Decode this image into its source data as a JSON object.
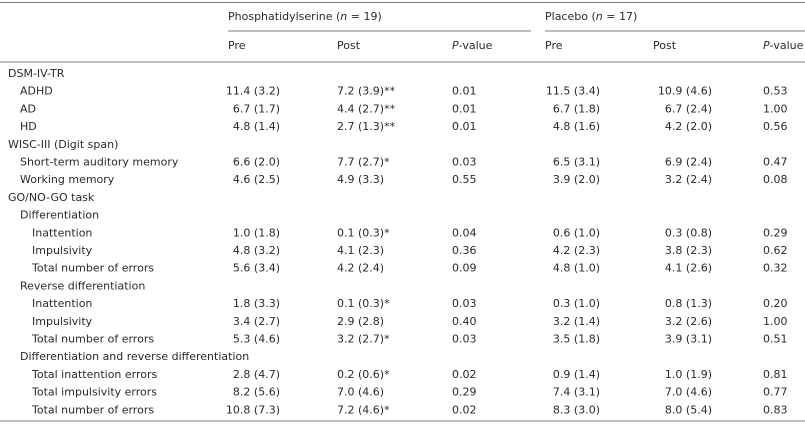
{
  "header": {
    "groups": [
      {
        "prefix": "Phosphatidylserine (",
        "italic": "n",
        "suffix": " = 19)"
      },
      {
        "prefix": "Placebo (",
        "italic": "n",
        "suffix": " = 17)"
      }
    ],
    "columns": [
      {
        "text": "Pre"
      },
      {
        "text": "Post"
      },
      {
        "italic": "P",
        "text": "-value"
      },
      {
        "text": "Pre"
      },
      {
        "text": "Post"
      },
      {
        "italic": "P",
        "text": "-value"
      }
    ]
  },
  "sections": [
    {
      "title": "DSM-IV-TR",
      "rows": [
        {
          "label": "ADHD",
          "cells": [
            "11.4 (3.2)",
            "7.2 (3.9)**",
            "0.01",
            "11.5 (3.4)",
            "10.9 (4.6)",
            "0.53"
          ]
        },
        {
          "label": "AD",
          "cells": [
            "6.7 (1.7)",
            "4.4 (2.7)**",
            "0.01",
            "6.7 (1.8)",
            "6.7 (2.4)",
            "1.00"
          ]
        },
        {
          "label": "HD",
          "cells": [
            "4.8 (1.4)",
            "2.7 (1.3)**",
            "0.01",
            "4.8 (1.6)",
            "4.2 (2.0)",
            "0.56"
          ]
        }
      ]
    },
    {
      "title": "WISC-III (Digit span)",
      "rows": [
        {
          "label": "Short-term auditory memory",
          "cells": [
            "6.6 (2.0)",
            "7.7 (2.7)*",
            "0.03",
            "6.5 (3.1)",
            "6.9 (2.4)",
            "0.47"
          ]
        },
        {
          "label": "Working memory",
          "cells": [
            "4.6 (2.5)",
            "4.9 (3.3)",
            "0.55",
            "3.9 (2.0)",
            "3.2 (2.4)",
            "0.08"
          ]
        }
      ]
    },
    {
      "title": "GO/NO-GO task",
      "subsections": [
        {
          "title": "Differentiation",
          "rows": [
            {
              "label": "Inattention",
              "cells": [
                "1.0 (1.8)",
                "0.1 (0.3)*",
                "0.04",
                "0.6 (1.0)",
                "0.3 (0.8)",
                "0.29"
              ]
            },
            {
              "label": "Impulsivity",
              "cells": [
                "4.8 (3.2)",
                "4.1 (2.3)",
                "0.36",
                "4.2 (2.3)",
                "3.8 (2.3)",
                "0.62"
              ]
            },
            {
              "label": "Total number of errors",
              "cells": [
                "5.6 (3.4)",
                "4.2 (2.4)",
                "0.09",
                "4.8 (1.0)",
                "4.1 (2.6)",
                "0.32"
              ]
            }
          ]
        },
        {
          "title": "Reverse differentiation",
          "rows": [
            {
              "label": "Inattention",
              "cells": [
                "1.8 (3.3)",
                "0.1 (0.3)*",
                "0.03",
                "0.3 (1.0)",
                "0.8 (1.3)",
                "0.20"
              ]
            },
            {
              "label": "Impulsivity",
              "cells": [
                "3.4 (2.7)",
                "2.9 (2.8)",
                "0.40",
                "3.2 (1.4)",
                "3.2 (2.6)",
                "1.00"
              ]
            },
            {
              "label": "Total number of errors",
              "cells": [
                "5.3 (4.6)",
                "3.2 (2.7)*",
                "0.03",
                "3.5 (1.8)",
                "3.9 (3.1)",
                "0.51"
              ]
            }
          ]
        },
        {
          "title": "Differentiation and reverse differentiation",
          "rows": [
            {
              "label": "Total inattention errors",
              "cells": [
                "2.8 (4.7)",
                "0.2 (0.6)*",
                "0.02",
                "0.9 (1.4)",
                "1.0 (1.9)",
                "0.81"
              ]
            },
            {
              "label": "Total impulsivity errors",
              "cells": [
                "8.2 (5.6)",
                "7.0 (4.6)",
                "0.29",
                "7.4 (3.1)",
                "7.0 (4.6)",
                "0.77"
              ]
            },
            {
              "label": "Total number of errors",
              "cells": [
                "10.8 (7.3)",
                "7.2 (4.6)*",
                "0.02",
                "8.3 (3.0)",
                "8.0 (5.4)",
                "0.83"
              ]
            }
          ]
        }
      ]
    }
  ]
}
